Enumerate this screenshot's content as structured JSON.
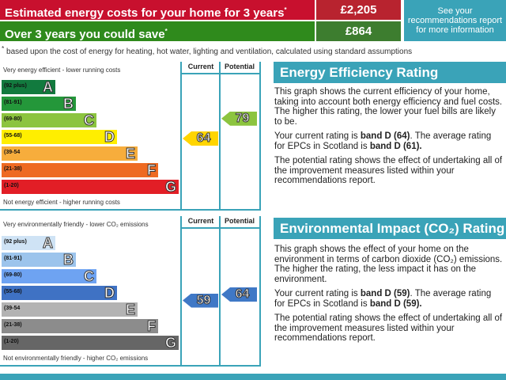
{
  "costs": {
    "estimated_label": "Estimated energy costs for your home for 3 years",
    "estimated_value": "£2,205",
    "save_label": "Over 3 years you could save",
    "save_value": "£864",
    "asterisk": "*",
    "recommendations_link": "See your recommendations report for more information",
    "footnote": "based upon the cost of energy for heating, hot water, lighting and ventilation, calculated using standard assumptions"
  },
  "energy_chart": {
    "top_caption": "Very energy efficient - lower running costs",
    "bottom_caption": "Not energy efficient - higher running costs",
    "current_header": "Current",
    "potential_header": "Potential",
    "current": 64,
    "potential": 79,
    "current_color": "#ffd500",
    "potential_color": "#8cc43f",
    "bands": [
      {
        "range": "(92 plus)",
        "letter": "A",
        "color": "#127a3e"
      },
      {
        "range": "(81-91)",
        "letter": "B",
        "color": "#24973a"
      },
      {
        "range": "(69-80)",
        "letter": "C",
        "color": "#8cc43f"
      },
      {
        "range": "(55-68)",
        "letter": "D",
        "color": "#ffee00"
      },
      {
        "range": "(39-54",
        "letter": "E",
        "color": "#f7ad3c"
      },
      {
        "range": "(21-38)",
        "letter": "F",
        "color": "#ee6a22"
      },
      {
        "range": "(1-20)",
        "letter": "G",
        "color": "#e21e26"
      }
    ]
  },
  "env_chart": {
    "top_caption": "Very environmentally friendly - lower CO₂ emissions",
    "bottom_caption": "Not environmentally friendly - higher CO₂ emissions",
    "current_header": "Current",
    "potential_header": "Potential",
    "current": 59,
    "potential": 64,
    "current_color": "#3f78c6",
    "potential_color": "#3f78c6",
    "bands": [
      {
        "range": "(92 plus)",
        "letter": "A",
        "color": "#cfe3f5"
      },
      {
        "range": "(81-91)",
        "letter": "B",
        "color": "#9cc4ec"
      },
      {
        "range": "(69-80)",
        "letter": "C",
        "color": "#6ea3f2"
      },
      {
        "range": "(55-68)",
        "letter": "D",
        "color": "#3f72c4"
      },
      {
        "range": "(39-54",
        "letter": "E",
        "color": "#b3b3b3"
      },
      {
        "range": "(21-38)",
        "letter": "F",
        "color": "#8c8c8c"
      },
      {
        "range": "(1-20)",
        "letter": "G",
        "color": "#666666"
      }
    ]
  },
  "energy_panel": {
    "title": "Energy Efficiency Rating",
    "p1": "This graph shows the current efficiency of your home, taking into account both energy efficiency and fuel costs. The higher this rating, the lower your fuel bills are likely to be.",
    "p2_a": "Your current rating is ",
    "p2_b": "band D (64)",
    "p2_c": ". The average rating for EPCs in Scotland is ",
    "p2_d": "band D (61).",
    "p3": "The potential rating shows the effect of undertaking all of the improvement measures listed within your recommendations report."
  },
  "env_panel": {
    "title": "Environmental Impact (CO₂) Rating",
    "p1": "This graph shows the effect of your home on the environment in terms of carbon dioxide (CO₂) emissions. The higher the rating, the less impact it has on the environment.",
    "p2_a": "Your current rating is ",
    "p2_b": "band D (59)",
    "p2_c": ". The average rating for EPCs in Scotland is ",
    "p2_d": "band D (59).",
    "p3": "The potential rating shows the effect of undertaking all of the improvement measures listed within your recommendations report."
  }
}
